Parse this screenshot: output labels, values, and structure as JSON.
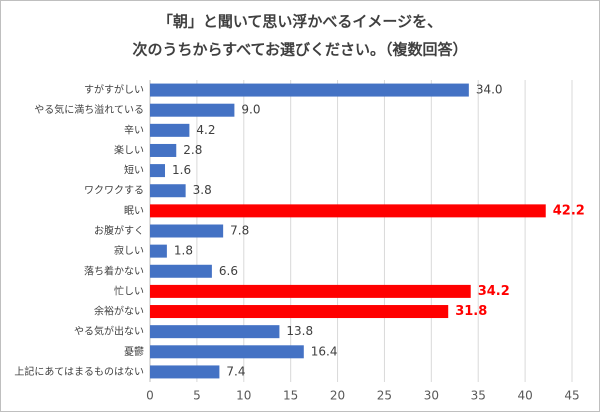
{
  "chart_data": {
    "type": "barh",
    "title": [
      "「朝」と聞いて思い浮かべるイメージを、",
      "次のうちからすべてお選びください。（複数回答）"
    ],
    "categories": [
      "すがすがしい",
      "やる気に満ち溢れている",
      "辛い",
      "楽しい",
      "短い",
      "ワクワクする",
      "眠い",
      "お腹がすく",
      "寂しい",
      "落ち着かない",
      "忙しい",
      "余裕がない",
      "やる気が出ない",
      "憂鬱",
      "上記にあてはまるものはない"
    ],
    "values": [
      34.0,
      9.0,
      4.2,
      2.8,
      1.6,
      3.8,
      42.2,
      7.8,
      1.8,
      6.6,
      34.2,
      31.8,
      13.8,
      16.4,
      7.4
    ],
    "value_labels": [
      "34.0",
      "9.0",
      "4.2",
      "2.8",
      "1.6",
      "3.8",
      "42.2",
      "7.8",
      "1.8",
      "6.6",
      "34.2",
      "31.8",
      "13.8",
      "16.4",
      "7.4"
    ],
    "colors": [
      "#4472c4",
      "#4472c4",
      "#4472c4",
      "#4472c4",
      "#4472c4",
      "#4472c4",
      "#ff0000",
      "#4472c4",
      "#4472c4",
      "#4472c4",
      "#ff0000",
      "#ff0000",
      "#4472c4",
      "#4472c4",
      "#4472c4"
    ],
    "xlim": [
      0,
      45
    ],
    "xticks": [
      0,
      5,
      10,
      15,
      20,
      25,
      30,
      35,
      40,
      45
    ],
    "grid": true
  }
}
